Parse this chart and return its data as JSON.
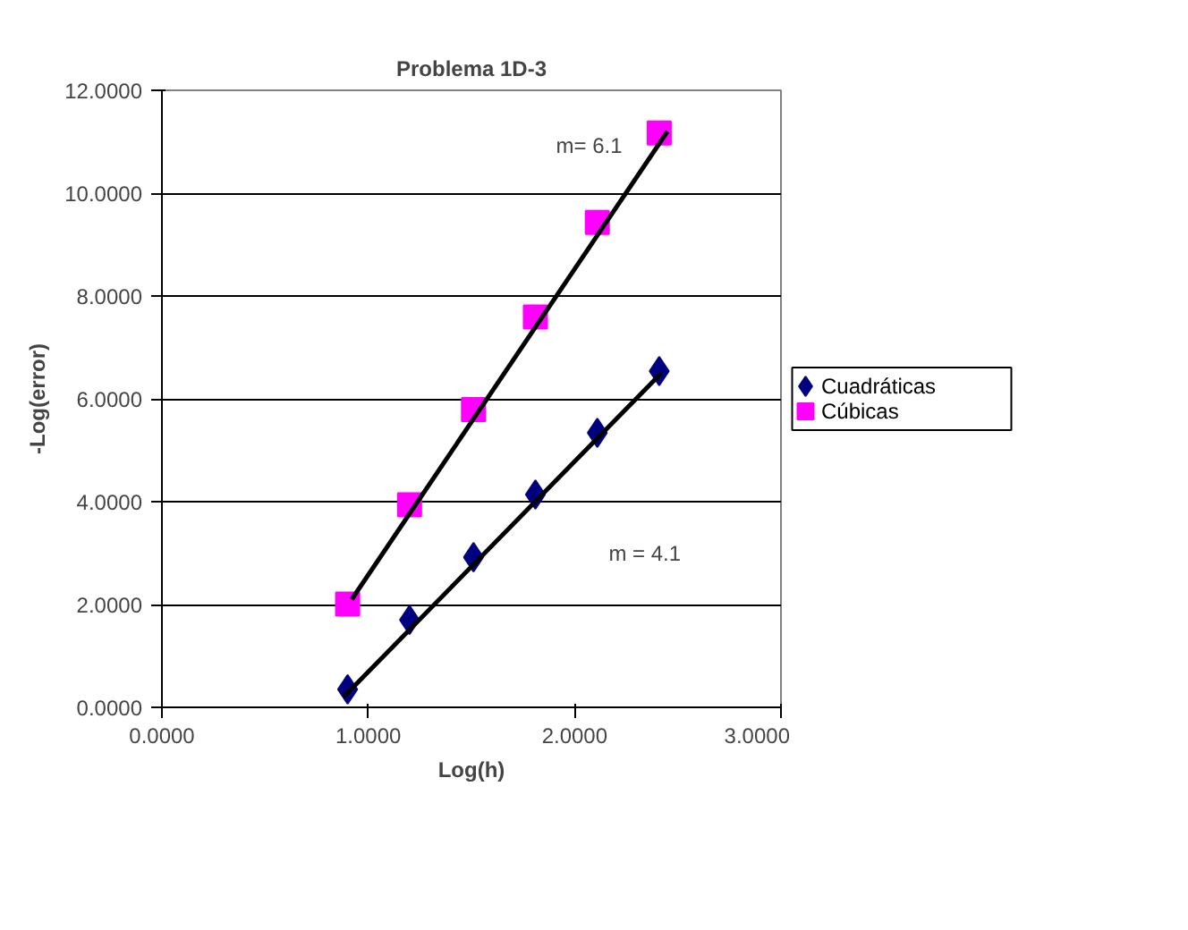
{
  "chart_data": {
    "type": "scatter",
    "title": "Problema 1D-3",
    "xlabel": "Log(h)",
    "ylabel": "-Log(error)",
    "xlim": [
      0,
      3
    ],
    "xticks": [
      {
        "value": 0,
        "label": "0.0000"
      },
      {
        "value": 1,
        "label": "1.0000"
      },
      {
        "value": 2,
        "label": "2.0000"
      },
      {
        "value": 3,
        "label": "3.0000"
      }
    ],
    "ylim": [
      0,
      12
    ],
    "yticks": [
      {
        "value": 0,
        "label": "0.0000"
      },
      {
        "value": 2,
        "label": "2.0000"
      },
      {
        "value": 4,
        "label": "4.0000"
      },
      {
        "value": 6,
        "label": "6.0000"
      },
      {
        "value": 8,
        "label": "8.0000"
      },
      {
        "value": 10,
        "label": "10.0000"
      },
      {
        "value": 12,
        "label": "12.0000"
      }
    ],
    "grid": "y",
    "legend": "right",
    "x": [
      0.9,
      1.2,
      1.51,
      1.81,
      2.11,
      2.41
    ],
    "series": [
      {
        "name": "Cuadráticas",
        "color": "#000080",
        "marker": "diamond",
        "values": [
          0.35,
          1.7,
          2.92,
          4.14,
          5.34,
          6.54
        ]
      },
      {
        "name": "Cúbicas",
        "color": "#ff00ff",
        "marker": "square",
        "values": [
          2.01,
          3.94,
          5.79,
          7.59,
          9.43,
          11.17
        ]
      },
      {
        "type": "line",
        "color": "#000000",
        "x": [
          0.88,
          2.42
        ],
        "values": [
          0.2,
          6.5
        ]
      },
      {
        "type": "line",
        "color": "#000000",
        "x": [
          0.92,
          2.45
        ],
        "values": [
          2.1,
          11.2
        ]
      }
    ],
    "annotations": [
      "m= 6.1",
      "m = 4.1"
    ]
  }
}
